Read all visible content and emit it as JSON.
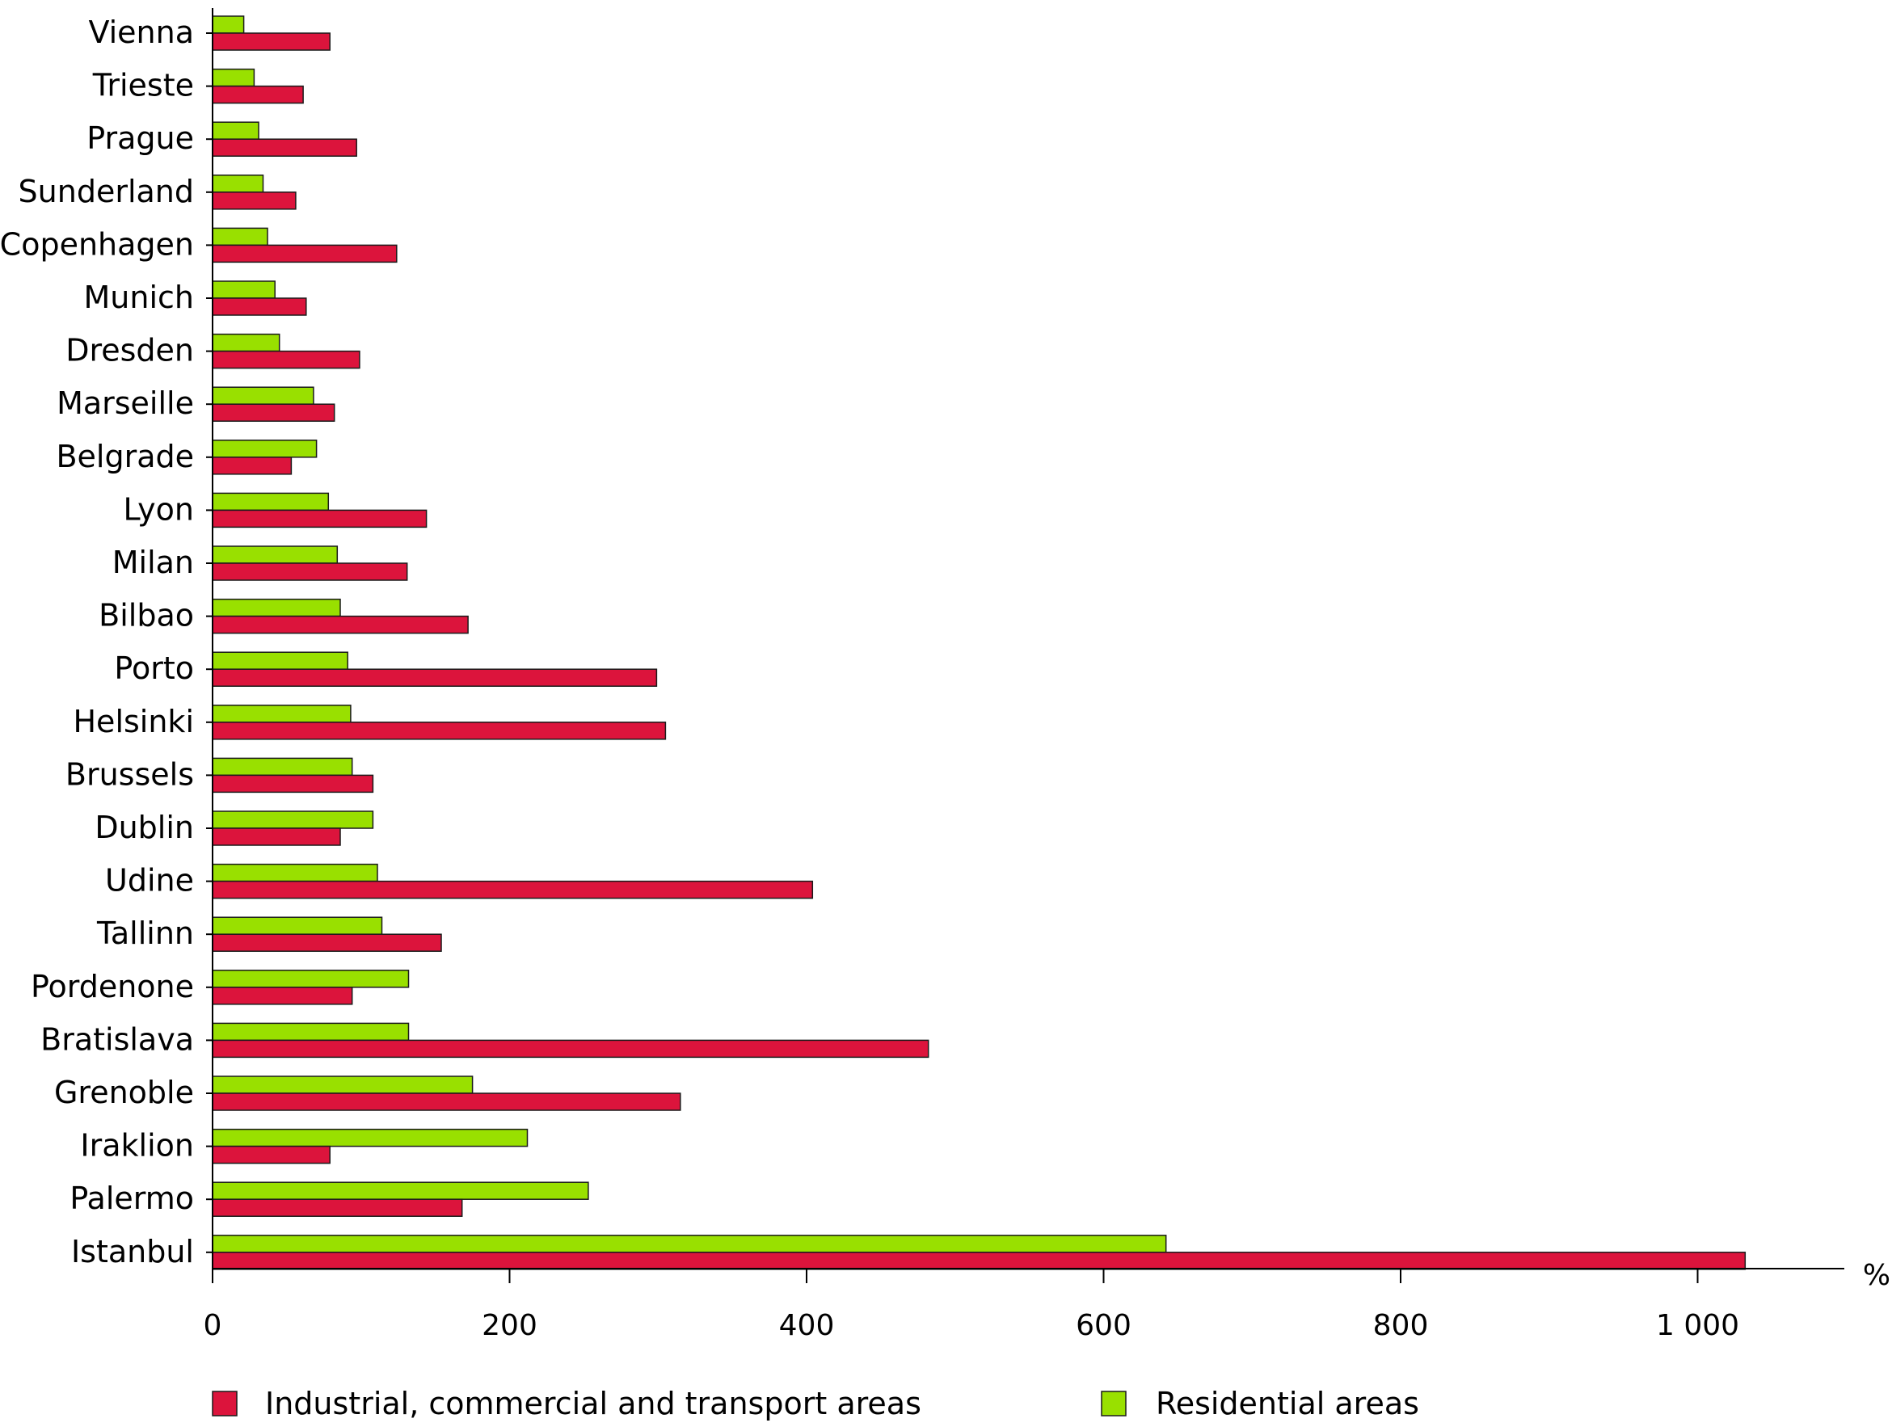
{
  "chart_data": {
    "type": "bar",
    "orientation": "horizontal",
    "title": "",
    "xlabel": "",
    "ylabel": "",
    "x_unit_label": "%",
    "xlim": [
      0,
      1100
    ],
    "x_ticks": [
      0,
      200,
      400,
      600,
      800,
      1000
    ],
    "x_tick_labels": [
      "0",
      "200",
      "400",
      "600",
      "800",
      "1 000"
    ],
    "grid": false,
    "legend_position": "bottom",
    "categories": [
      "Vienna",
      "Trieste",
      "Prague",
      "Sunderland",
      "Copenhagen",
      "Munich",
      "Dresden",
      "Marseille",
      "Belgrade",
      "Lyon",
      "Milan",
      "Bilbao",
      "Porto",
      "Helsinki",
      "Brussels",
      "Dublin",
      "Udine",
      "Tallinn",
      "Pordenone",
      "Bratislava",
      "Grenoble",
      "Iraklion",
      "Palermo",
      "Istanbul"
    ],
    "series": [
      {
        "name": "Industrial, commercial and transport areas",
        "color": "#dc143c",
        "values": [
          79,
          61,
          97,
          56,
          124,
          63,
          99,
          82,
          53,
          144,
          131,
          172,
          299,
          305,
          108,
          86,
          404,
          154,
          94,
          482,
          315,
          79,
          168,
          1032
        ]
      },
      {
        "name": "Residential areas",
        "color": "#99e000",
        "values": [
          21,
          28,
          31,
          34,
          37,
          42,
          45,
          68,
          70,
          78,
          84,
          86,
          91,
          93,
          94,
          108,
          111,
          114,
          132,
          132,
          175,
          212,
          253,
          642
        ]
      }
    ]
  }
}
